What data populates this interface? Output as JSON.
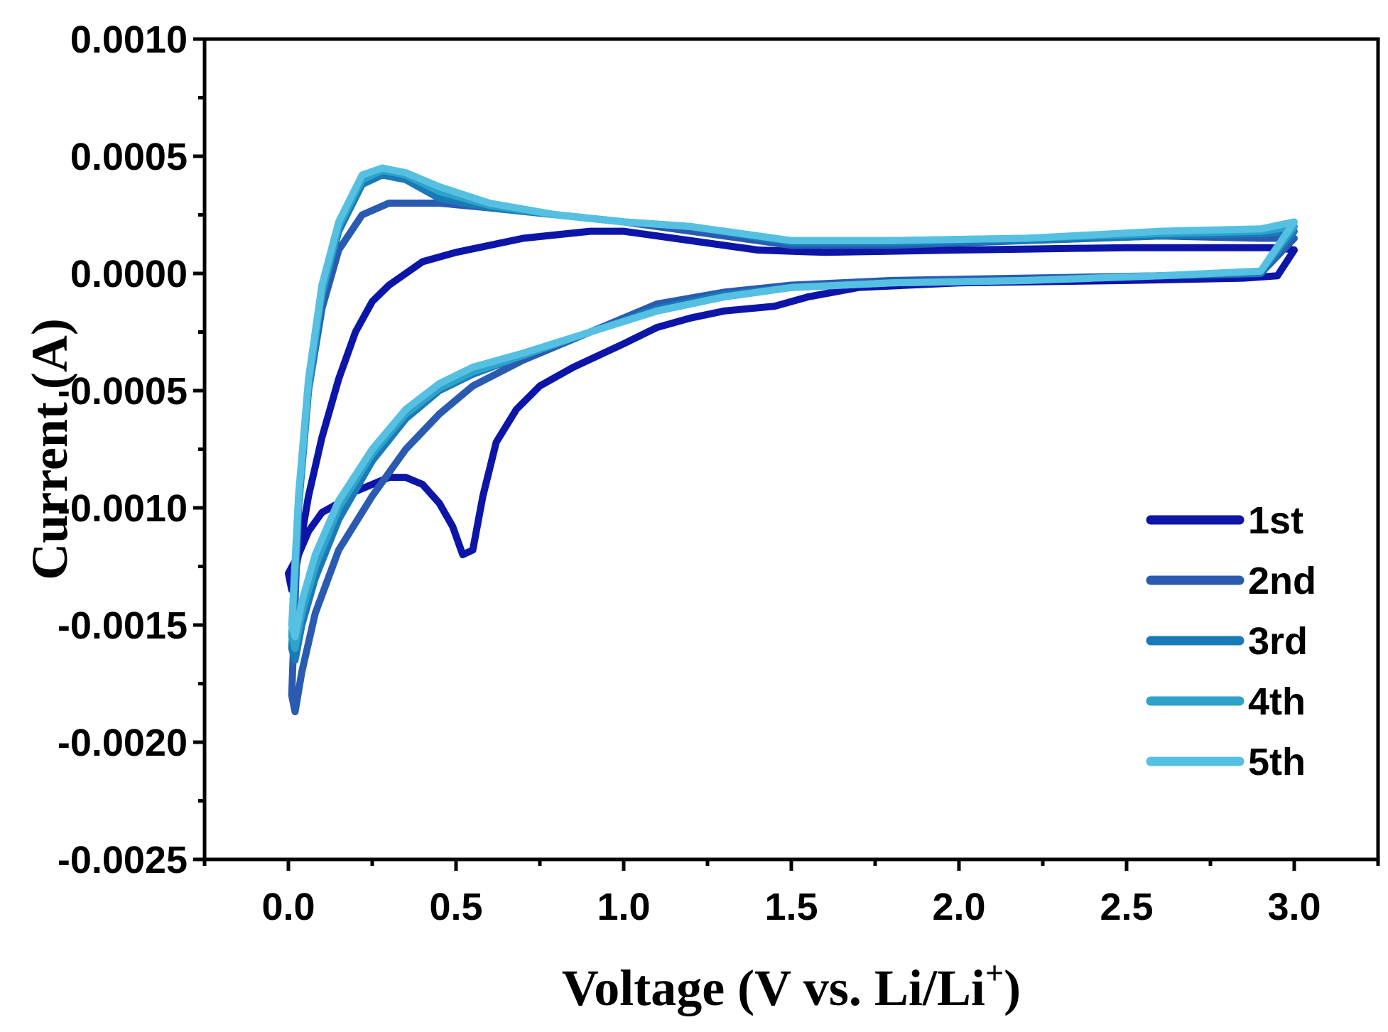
{
  "chart_data": {
    "type": "line",
    "title": "",
    "xlabel": "Voltage (V vs. Li/Li",
    "xlabel_sup": "+",
    "xlabel_close": ")",
    "ylabel": "Current (A)",
    "xlim": [
      -0.25,
      3.25
    ],
    "ylim": [
      -0.0025,
      0.001
    ],
    "xticks": [
      0.0,
      0.5,
      1.0,
      1.5,
      2.0,
      2.5,
      3.0
    ],
    "xtick_labels": [
      "0.0",
      "0.5",
      "1.0",
      "1.5",
      "2.0",
      "2.5",
      "3.0"
    ],
    "yticks": [
      0.001,
      0.0005,
      0.0,
      -0.0005,
      -0.001,
      -0.0015,
      -0.002,
      -0.0025
    ],
    "ytick_labels": [
      "0.0010",
      "0.0005",
      "0.0000",
      "-0.0005",
      "-0.0010",
      "-0.0015",
      "-0.0020",
      "-0.0025"
    ],
    "grid": false,
    "legend_position": "bottom-right",
    "series": [
      {
        "name": "1st",
        "color": "#0d15a8",
        "points": [
          [
            0.0,
            -0.00128
          ],
          [
            0.01,
            -0.00135
          ],
          [
            0.03,
            -0.0012
          ],
          [
            0.06,
            -0.0011
          ],
          [
            0.1,
            -0.00102
          ],
          [
            0.15,
            -0.00098
          ],
          [
            0.2,
            -0.00093
          ],
          [
            0.25,
            -0.0009
          ],
          [
            0.3,
            -0.00087
          ],
          [
            0.35,
            -0.00087
          ],
          [
            0.4,
            -0.0009
          ],
          [
            0.45,
            -0.00098
          ],
          [
            0.49,
            -0.00108
          ],
          [
            0.52,
            -0.0012
          ],
          [
            0.55,
            -0.00118
          ],
          [
            0.58,
            -0.00095
          ],
          [
            0.62,
            -0.00072
          ],
          [
            0.68,
            -0.00058
          ],
          [
            0.75,
            -0.00048
          ],
          [
            0.85,
            -0.0004
          ],
          [
            1.0,
            -0.0003
          ],
          [
            1.1,
            -0.00023
          ],
          [
            1.2,
            -0.00019
          ],
          [
            1.3,
            -0.00016
          ],
          [
            1.45,
            -0.00014
          ],
          [
            1.55,
            -0.0001
          ],
          [
            1.7,
            -6e-05
          ],
          [
            2.0,
            -4e-05
          ],
          [
            2.5,
            -3e-05
          ],
          [
            2.85,
            -2e-05
          ],
          [
            2.95,
            -1e-05
          ],
          [
            3.0,
            0.0001
          ],
          [
            2.95,
            0.00011
          ],
          [
            2.8,
            0.00011
          ],
          [
            2.5,
            0.00011
          ],
          [
            2.0,
            0.0001
          ],
          [
            1.6,
            9e-05
          ],
          [
            1.4,
            0.0001
          ],
          [
            1.2,
            0.00014
          ],
          [
            1.0,
            0.00018
          ],
          [
            0.9,
            0.00018
          ],
          [
            0.7,
            0.00015
          ],
          [
            0.5,
            9e-05
          ],
          [
            0.4,
            5e-05
          ],
          [
            0.3,
            -5e-05
          ],
          [
            0.25,
            -0.00012
          ],
          [
            0.2,
            -0.00025
          ],
          [
            0.15,
            -0.00045
          ],
          [
            0.1,
            -0.0007
          ],
          [
            0.06,
            -0.00095
          ],
          [
            0.03,
            -0.0012
          ],
          [
            0.0,
            -0.00128
          ]
        ]
      },
      {
        "name": "2nd",
        "color": "#2a5bb0",
        "points": [
          [
            0.01,
            -0.0018
          ],
          [
            0.02,
            -0.00187
          ],
          [
            0.04,
            -0.0017
          ],
          [
            0.08,
            -0.00145
          ],
          [
            0.15,
            -0.00118
          ],
          [
            0.25,
            -0.00095
          ],
          [
            0.35,
            -0.00075
          ],
          [
            0.45,
            -0.0006
          ],
          [
            0.55,
            -0.00048
          ],
          [
            0.7,
            -0.00037
          ],
          [
            0.9,
            -0.00025
          ],
          [
            1.1,
            -0.00013
          ],
          [
            1.3,
            -8e-05
          ],
          [
            1.5,
            -5e-05
          ],
          [
            1.8,
            -3e-05
          ],
          [
            2.2,
            -2e-05
          ],
          [
            2.6,
            -1e-05
          ],
          [
            2.9,
            0.0
          ],
          [
            3.0,
            0.00015
          ],
          [
            2.9,
            0.00015
          ],
          [
            2.6,
            0.00016
          ],
          [
            2.2,
            0.00014
          ],
          [
            1.8,
            0.00012
          ],
          [
            1.5,
            0.00012
          ],
          [
            1.2,
            0.00018
          ],
          [
            1.0,
            0.00022
          ],
          [
            0.8,
            0.00025
          ],
          [
            0.6,
            0.00028
          ],
          [
            0.45,
            0.0003
          ],
          [
            0.3,
            0.0003
          ],
          [
            0.22,
            0.00025
          ],
          [
            0.15,
            0.0001
          ],
          [
            0.1,
            -0.00015
          ],
          [
            0.06,
            -0.0005
          ],
          [
            0.03,
            -0.001
          ],
          [
            0.01,
            -0.0018
          ]
        ]
      },
      {
        "name": "3rd",
        "color": "#1a7ab8",
        "points": [
          [
            0.01,
            -0.0016
          ],
          [
            0.02,
            -0.00165
          ],
          [
            0.04,
            -0.0015
          ],
          [
            0.08,
            -0.0013
          ],
          [
            0.15,
            -0.00105
          ],
          [
            0.25,
            -0.0008
          ],
          [
            0.35,
            -0.00062
          ],
          [
            0.45,
            -0.0005
          ],
          [
            0.55,
            -0.00043
          ],
          [
            0.7,
            -0.00035
          ],
          [
            0.9,
            -0.00025
          ],
          [
            1.1,
            -0.00015
          ],
          [
            1.3,
            -9e-05
          ],
          [
            1.5,
            -6e-05
          ],
          [
            1.8,
            -4e-05
          ],
          [
            2.2,
            -3e-05
          ],
          [
            2.6,
            -1e-05
          ],
          [
            2.9,
            0.0
          ],
          [
            3.0,
            0.00018
          ],
          [
            2.9,
            0.00017
          ],
          [
            2.6,
            0.00016
          ],
          [
            2.2,
            0.00014
          ],
          [
            1.8,
            0.00013
          ],
          [
            1.5,
            0.00013
          ],
          [
            1.2,
            0.0002
          ],
          [
            1.0,
            0.00022
          ],
          [
            0.8,
            0.00025
          ],
          [
            0.6,
            0.00028
          ],
          [
            0.45,
            0.00032
          ],
          [
            0.35,
            0.0004
          ],
          [
            0.28,
            0.00042
          ],
          [
            0.22,
            0.00038
          ],
          [
            0.15,
            0.00018
          ],
          [
            0.1,
            -0.0001
          ],
          [
            0.06,
            -0.0005
          ],
          [
            0.03,
            -0.001
          ],
          [
            0.01,
            -0.0016
          ]
        ]
      },
      {
        "name": "4th",
        "color": "#2ea2c8",
        "points": [
          [
            0.01,
            -0.00155
          ],
          [
            0.02,
            -0.0016
          ],
          [
            0.04,
            -0.00145
          ],
          [
            0.08,
            -0.00125
          ],
          [
            0.15,
            -0.001
          ],
          [
            0.25,
            -0.00077
          ],
          [
            0.35,
            -0.0006
          ],
          [
            0.45,
            -0.00049
          ],
          [
            0.55,
            -0.00042
          ],
          [
            0.7,
            -0.00035
          ],
          [
            0.9,
            -0.00025
          ],
          [
            1.1,
            -0.00016
          ],
          [
            1.3,
            -0.0001
          ],
          [
            1.5,
            -6e-05
          ],
          [
            1.8,
            -4e-05
          ],
          [
            2.2,
            -3e-05
          ],
          [
            2.6,
            -1e-05
          ],
          [
            2.9,
            1e-05
          ],
          [
            3.0,
            0.0002
          ],
          [
            2.9,
            0.00018
          ],
          [
            2.6,
            0.00017
          ],
          [
            2.2,
            0.00015
          ],
          [
            1.8,
            0.00014
          ],
          [
            1.5,
            0.00014
          ],
          [
            1.2,
            0.0002
          ],
          [
            1.0,
            0.00022
          ],
          [
            0.8,
            0.00025
          ],
          [
            0.6,
            0.00029
          ],
          [
            0.45,
            0.00035
          ],
          [
            0.35,
            0.00042
          ],
          [
            0.28,
            0.00044
          ],
          [
            0.22,
            0.0004
          ],
          [
            0.15,
            0.0002
          ],
          [
            0.1,
            -8e-05
          ],
          [
            0.06,
            -0.00048
          ],
          [
            0.03,
            -0.00098
          ],
          [
            0.01,
            -0.00155
          ]
        ]
      },
      {
        "name": "5th",
        "color": "#55c0e2",
        "points": [
          [
            0.01,
            -0.0015
          ],
          [
            0.02,
            -0.00155
          ],
          [
            0.04,
            -0.0014
          ],
          [
            0.08,
            -0.0012
          ],
          [
            0.15,
            -0.00097
          ],
          [
            0.25,
            -0.00075
          ],
          [
            0.35,
            -0.00058
          ],
          [
            0.45,
            -0.00047
          ],
          [
            0.55,
            -0.0004
          ],
          [
            0.7,
            -0.00034
          ],
          [
            0.9,
            -0.00025
          ],
          [
            1.1,
            -0.00016
          ],
          [
            1.3,
            -0.0001
          ],
          [
            1.5,
            -6e-05
          ],
          [
            1.8,
            -4e-05
          ],
          [
            2.2,
            -3e-05
          ],
          [
            2.6,
            -1e-05
          ],
          [
            2.9,
            1e-05
          ],
          [
            3.0,
            0.00022
          ],
          [
            2.9,
            0.00019
          ],
          [
            2.6,
            0.00018
          ],
          [
            2.2,
            0.00015
          ],
          [
            1.8,
            0.00014
          ],
          [
            1.5,
            0.00014
          ],
          [
            1.2,
            0.0002
          ],
          [
            1.0,
            0.00022
          ],
          [
            0.8,
            0.00025
          ],
          [
            0.6,
            0.0003
          ],
          [
            0.45,
            0.00037
          ],
          [
            0.35,
            0.00043
          ],
          [
            0.28,
            0.00045
          ],
          [
            0.22,
            0.00042
          ],
          [
            0.15,
            0.00022
          ],
          [
            0.1,
            -5e-05
          ],
          [
            0.06,
            -0.00045
          ],
          [
            0.03,
            -0.00095
          ],
          [
            0.01,
            -0.0015
          ]
        ]
      }
    ]
  }
}
